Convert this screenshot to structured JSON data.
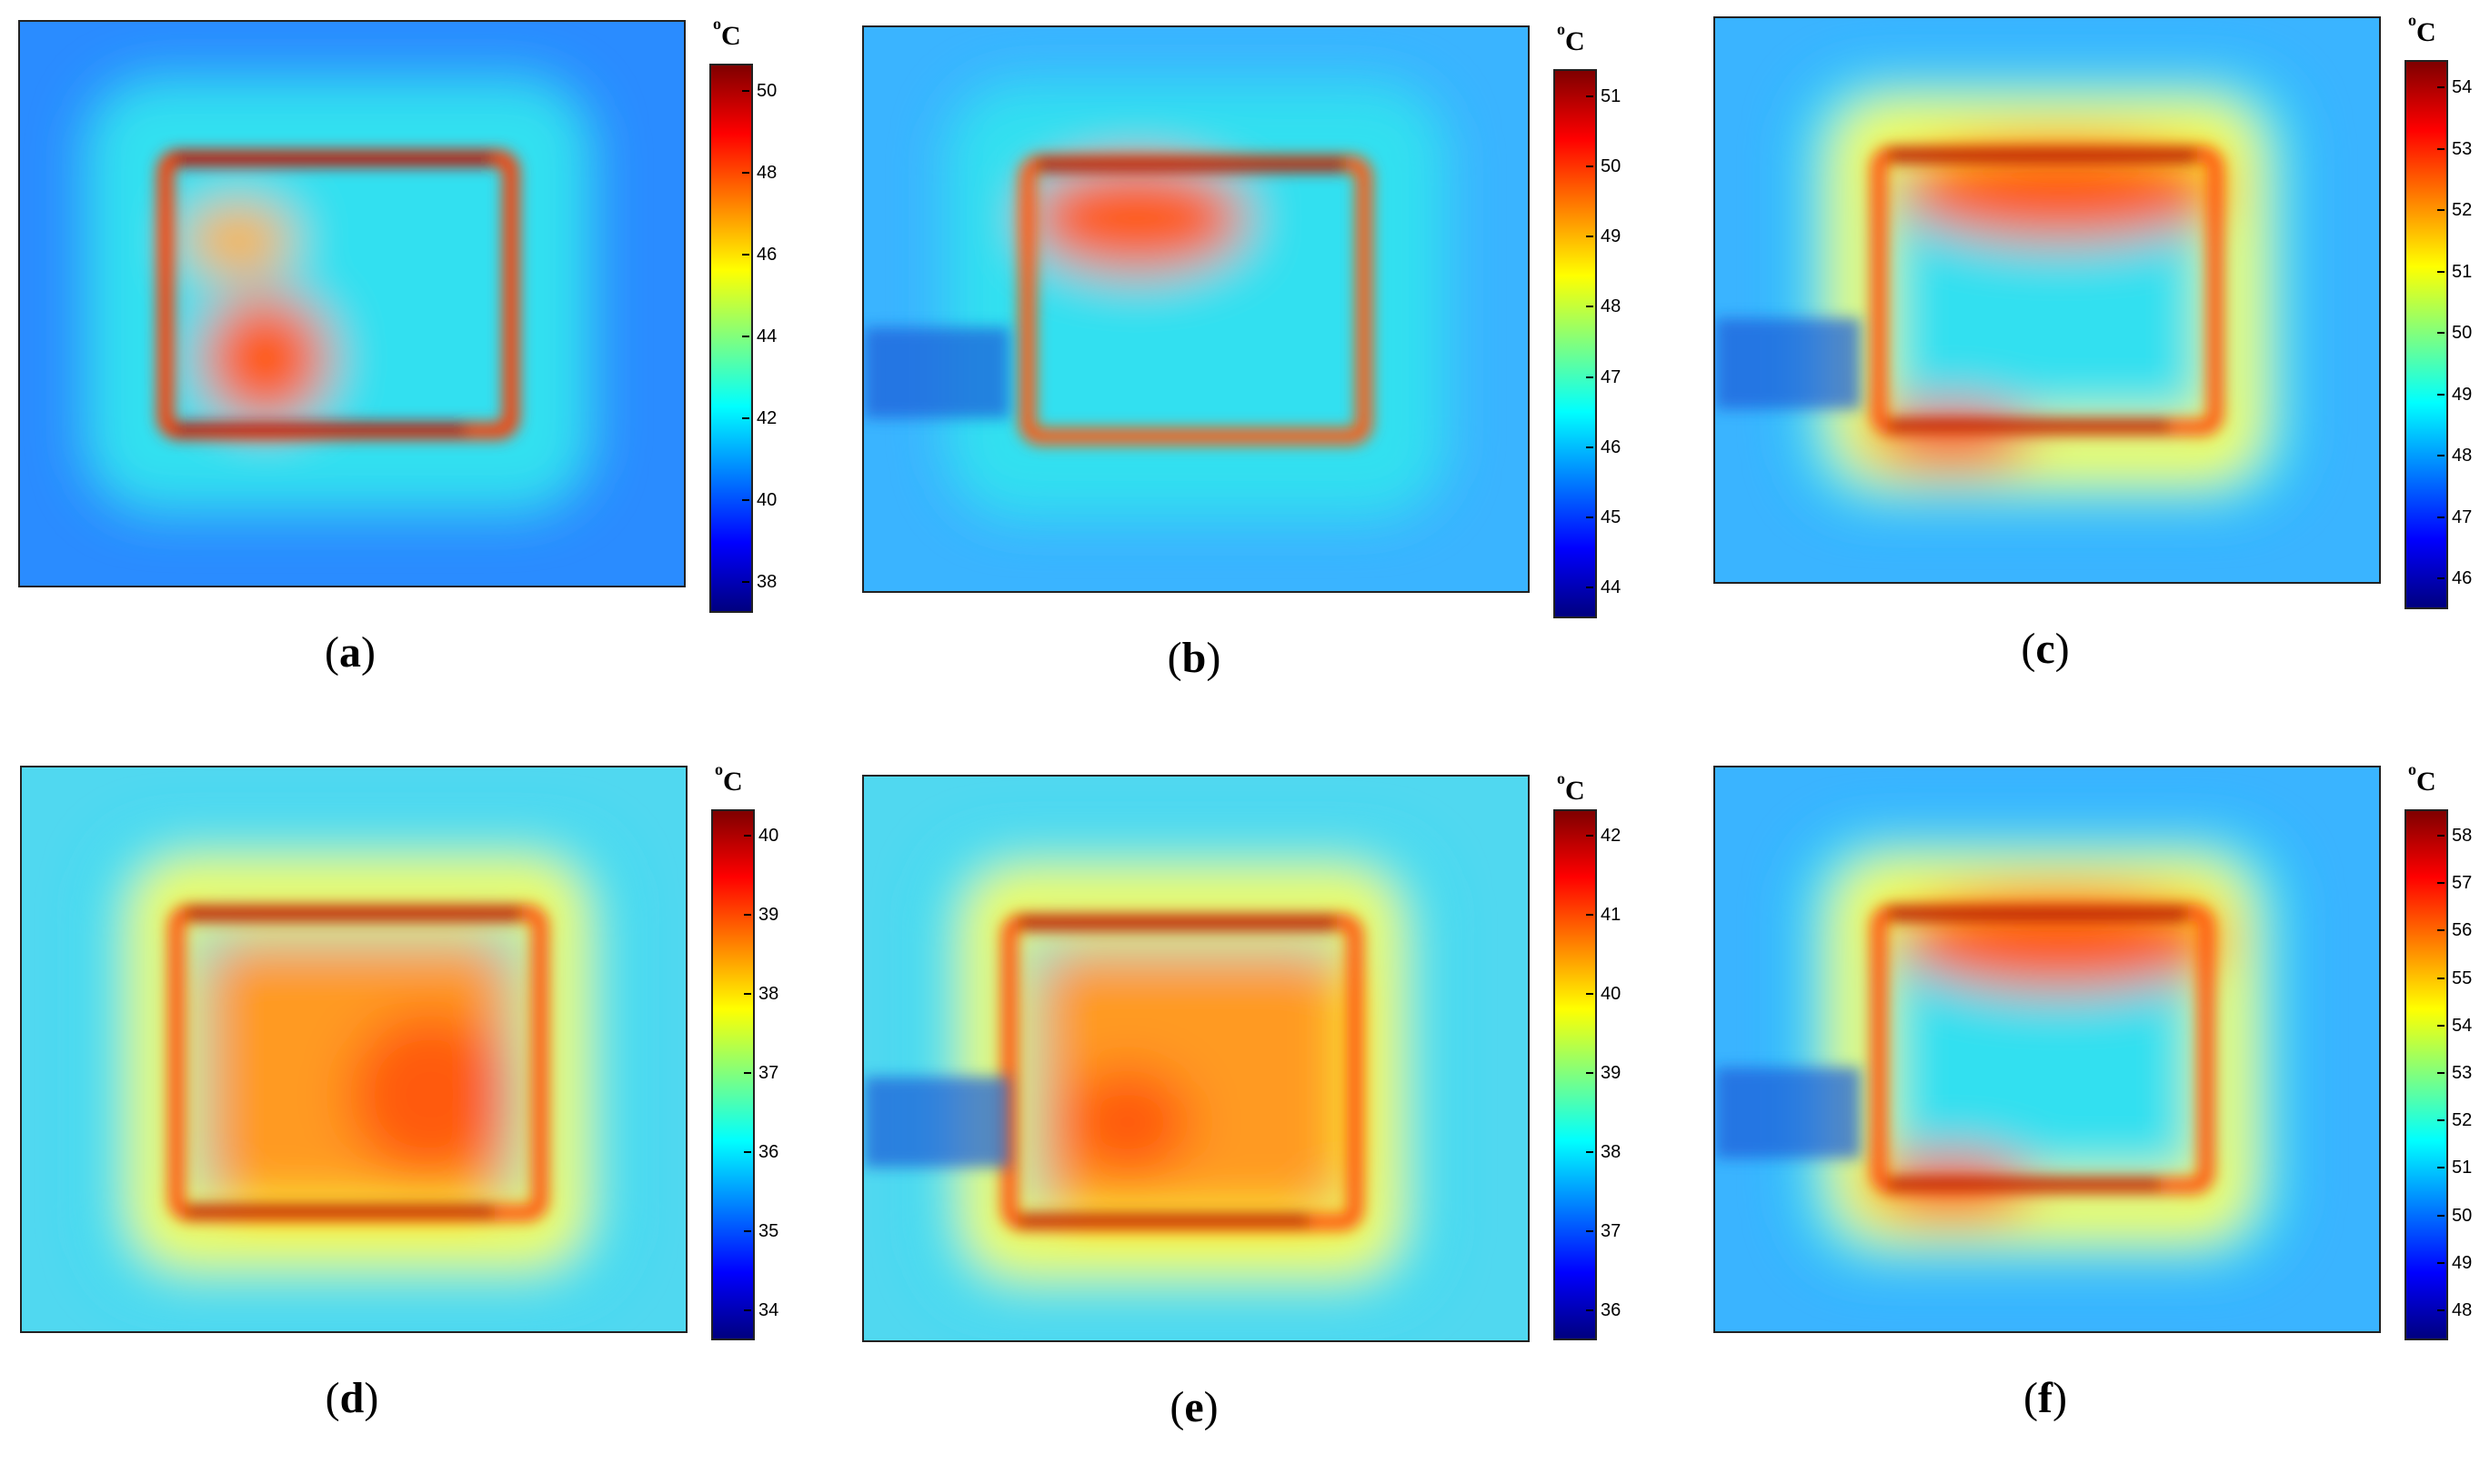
{
  "unit_label": "C",
  "unit_degree": "o",
  "panels": [
    {
      "caption_open": "(",
      "caption_letter": "a",
      "caption_close": ")",
      "ticks": [
        "50",
        "48",
        "46",
        "44",
        "42",
        "40",
        "38"
      ],
      "variant": "a"
    },
    {
      "caption_open": "(",
      "caption_letter": "b",
      "caption_close": ")",
      "ticks": [
        "51",
        "50",
        "49",
        "48",
        "47",
        "46",
        "45",
        "44"
      ],
      "variant": "b"
    },
    {
      "caption_open": "(",
      "caption_letter": "c",
      "caption_close": ")",
      "ticks": [
        "54",
        "53",
        "52",
        "51",
        "50",
        "49",
        "48",
        "47",
        "46"
      ],
      "variant": "c"
    },
    {
      "caption_open": "(",
      "caption_letter": "d",
      "caption_close": ")",
      "ticks": [
        "40",
        "39",
        "38",
        "37",
        "36",
        "35",
        "34"
      ],
      "variant": "d"
    },
    {
      "caption_open": "(",
      "caption_letter": "e",
      "caption_close": ")",
      "ticks": [
        "42",
        "41",
        "40",
        "39",
        "38",
        "37",
        "36"
      ],
      "variant": "e"
    },
    {
      "caption_open": "(",
      "caption_letter": "f",
      "caption_close": ")",
      "ticks": [
        "58",
        "57",
        "56",
        "55",
        "54",
        "53",
        "52",
        "51",
        "50",
        "49",
        "48"
      ],
      "variant": "f"
    }
  ],
  "colors": {
    "jet": [
      "#00007f",
      "#0000ff",
      "#007fff",
      "#00ffff",
      "#7fff7f",
      "#ffff00",
      "#ff7f00",
      "#ff0000",
      "#7f0000"
    ]
  }
}
